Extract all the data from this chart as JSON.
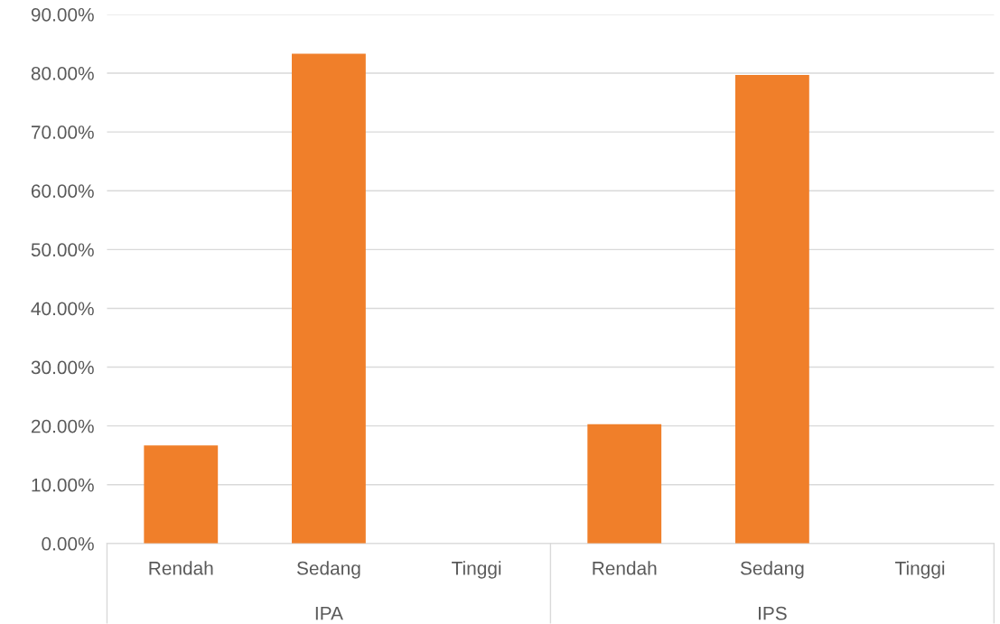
{
  "chart_data": {
    "type": "bar",
    "categories": [
      "Rendah",
      "Sedang",
      "Tinggi",
      "Rendah",
      "Sedang",
      "Tinggi"
    ],
    "values": [
      16.7,
      83.3,
      0,
      20.3,
      79.7,
      0
    ],
    "color": "#f07f2a",
    "ylim": [
      0,
      90
    ],
    "yticks": [
      {
        "value": 0,
        "label": "0.00%"
      },
      {
        "value": 10,
        "label": "10.00%"
      },
      {
        "value": 20,
        "label": "20.00%"
      },
      {
        "value": 30,
        "label": "30.00%"
      },
      {
        "value": 40,
        "label": "40.00%"
      },
      {
        "value": 50,
        "label": "50.00%"
      },
      {
        "value": 60,
        "label": "60.00%"
      },
      {
        "value": 70,
        "label": "70.00%"
      },
      {
        "value": 80,
        "label": "80.00%"
      },
      {
        "value": 90,
        "label": "90.00%"
      }
    ],
    "grid": "y",
    "annotations": [
      "IPA",
      "IPS"
    ]
  }
}
